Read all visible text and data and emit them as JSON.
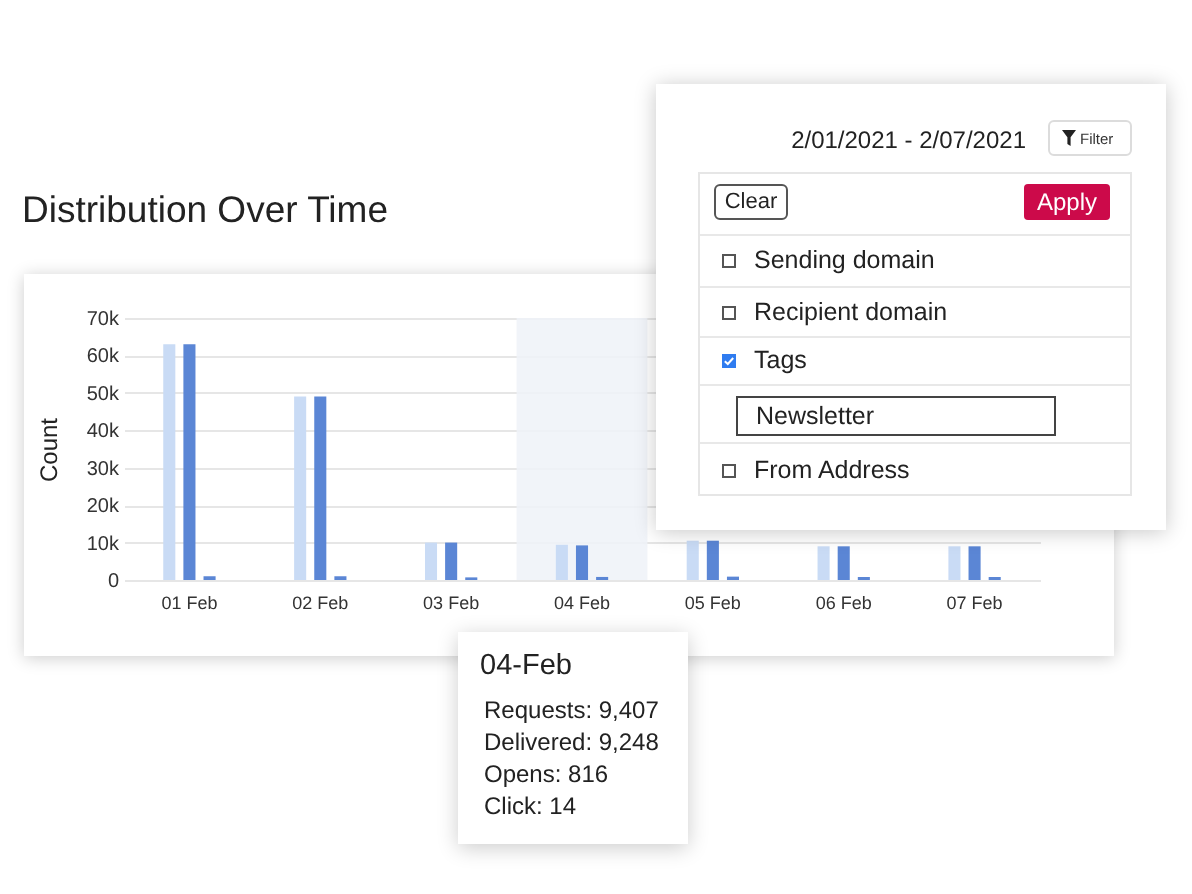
{
  "chart_data": [
    {
      "type": "bar",
      "title": "Distribution Over Time",
      "ylabel": "Count",
      "categories": [
        "01 Feb",
        "02 Feb",
        "03 Feb",
        "04 Feb",
        "05 Feb",
        "06 Feb",
        "07 Feb"
      ],
      "series": [
        {
          "color": "#c9dbf5",
          "values": [
            63000,
            49000,
            10000,
            9407,
            10500,
            9000,
            9000
          ]
        },
        {
          "color": "#5b86d5",
          "values": [
            63000,
            49000,
            10000,
            9248,
            10500,
            9000,
            9000
          ]
        },
        {
          "color": "#5b86d5",
          "values": [
            1000,
            1000,
            700,
            816,
            900,
            800,
            800
          ]
        }
      ],
      "ylim": [
        0,
        70000
      ],
      "yticks": [
        0,
        {
          "value": 10000,
          "label": "10k"
        },
        {
          "value": 20000,
          "label": "20k"
        },
        {
          "value": 30000,
          "label": "30k"
        },
        {
          "value": 40000,
          "label": "40k"
        },
        {
          "value": 50000,
          "label": "50k"
        },
        {
          "value": 60000,
          "label": "60k"
        },
        {
          "value": 70000,
          "label": "70k"
        }
      ],
      "grid": "y",
      "bands": [
        {
          "axis": "x",
          "from": "04 Feb",
          "to": "04 Feb",
          "color": "#eef2f8"
        }
      ],
      "annotations": [
        "04-Feb",
        "Requests: 9,407",
        "Delivered: 9,248",
        "Opens: 816",
        "Click: 14"
      ]
    },
    {
      "type": "other",
      "annotations": [
        "2/01/2021 - 2/07/2021",
        "Filter",
        "Clear",
        "Apply",
        "Sending domain",
        "Recipient domain",
        "Tags",
        "Newsletter",
        "From Address"
      ]
    }
  ]
}
